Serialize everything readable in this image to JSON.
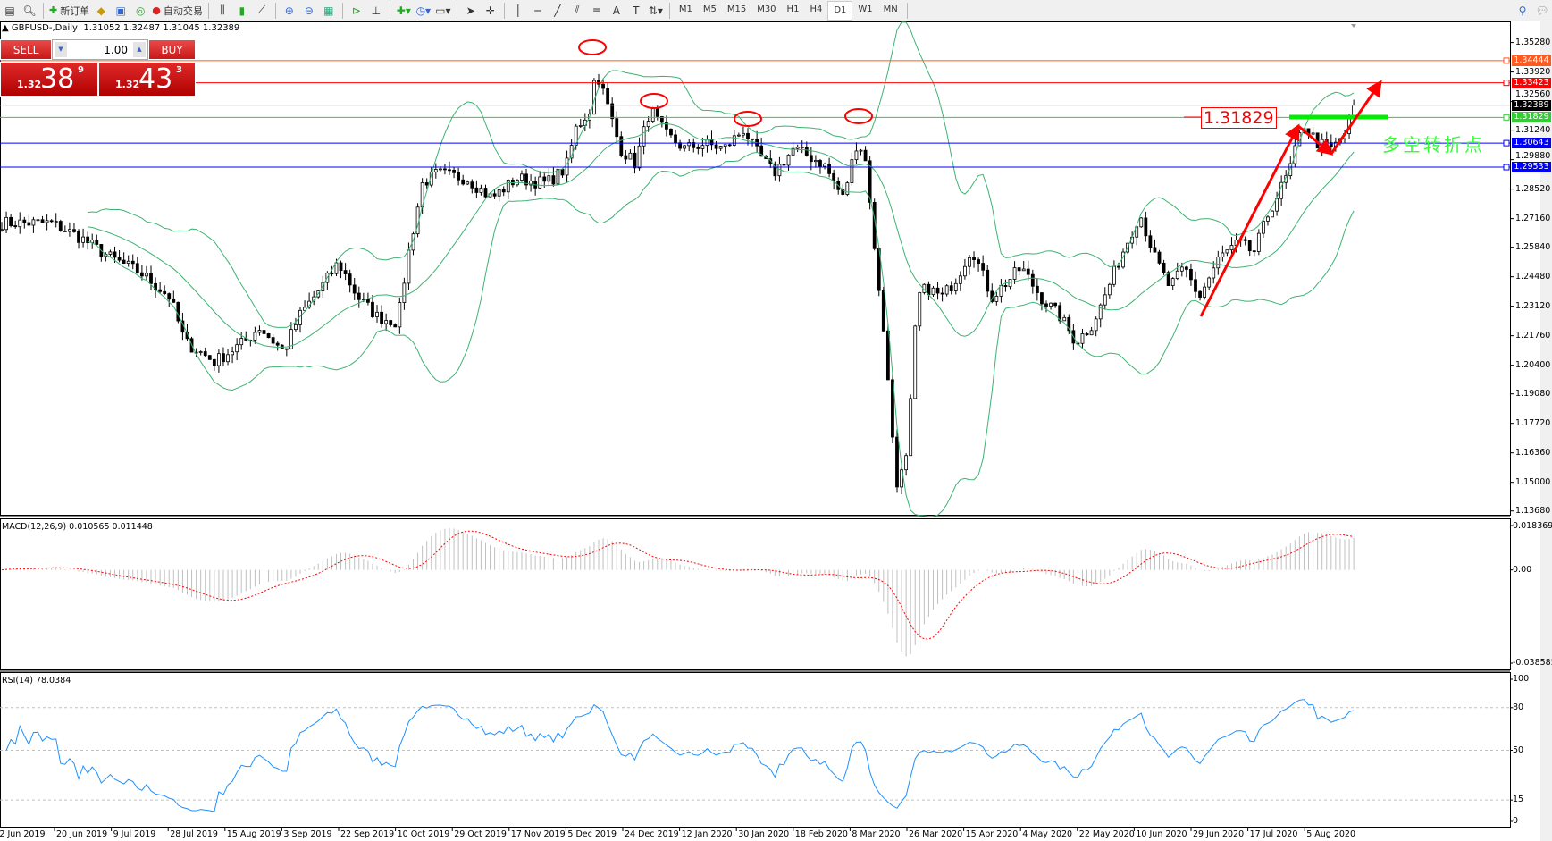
{
  "toolbar": {
    "new_order_label": "新订单",
    "auto_trading_label": "自动交易",
    "timeframes": [
      "M1",
      "M5",
      "M15",
      "M30",
      "H1",
      "H4",
      "D1",
      "W1",
      "MN"
    ],
    "active_timeframe": "D1"
  },
  "chart": {
    "header": "GBPUSD-,Daily  1.31052 1.32487 1.31045 1.32389",
    "symbol": "GBPUSD-",
    "period": "Daily"
  },
  "trade_panel": {
    "sell_label": "SELL",
    "buy_label": "BUY",
    "volume": "1.00",
    "sell_prefix": "1.32",
    "sell_big": "38",
    "sell_sup": "9",
    "buy_prefix": "1.32",
    "buy_big": "43",
    "buy_sup": "3"
  },
  "price_axis": [
    "1.35280",
    "1.33920",
    "1.32560",
    "1.31240",
    "1.29880",
    "1.28520",
    "1.27160",
    "1.25840",
    "1.24480",
    "1.23120",
    "1.21760",
    "1.20400",
    "1.19080",
    "1.17720",
    "1.16360",
    "1.15000",
    "1.13680"
  ],
  "levels": [
    {
      "price": "1.34444",
      "color": "#ff5a1f"
    },
    {
      "price": "1.33423",
      "color": "#ff0000"
    },
    {
      "price": "1.32389",
      "color": "#000000",
      "line": "#c0c0c0"
    },
    {
      "price": "1.31829",
      "color": "#32cd32"
    },
    {
      "price": "1.30643",
      "color": "#0000ff"
    },
    {
      "price": "1.29533",
      "color": "#0000ff"
    }
  ],
  "annotations": {
    "price_label": "1.31829",
    "turning_point_text": "多空转折点",
    "turning_point_color": "#33ff33",
    "arrow_color": "#ff0000"
  },
  "macd": {
    "label": "MACD(12,26,9) 0.010565 0.011448",
    "axis": [
      "0.018369",
      "0.00",
      "-0.038585"
    ]
  },
  "rsi": {
    "label": "RSI(14) 78.0384",
    "axis": [
      "100",
      "80",
      "50",
      "15",
      "0"
    ],
    "color": "#1e90ff"
  },
  "dates": [
    "2 Jun 2019",
    "20 Jun 2019",
    "9 Jul 2019",
    "28 Jul 2019",
    "15 Aug 2019",
    "3 Sep 2019",
    "22 Sep 2019",
    "10 Oct 2019",
    "29 Oct 2019",
    "17 Nov 2019",
    "5 Dec 2019",
    "24 Dec 2019",
    "12 Jan 2020",
    "30 Jan 2020",
    "18 Feb 2020",
    "8 Mar 2020",
    "26 Mar 2020",
    "15 Apr 2020",
    "4 May 2020",
    "22 May 2020",
    "10 Jun 2020",
    "29 Jun 2020",
    "17 Jul 2020",
    "5 Aug 2020"
  ]
}
